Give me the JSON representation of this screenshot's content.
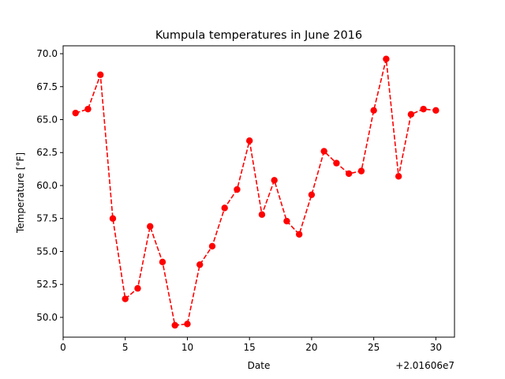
{
  "chart_data": {
    "type": "line",
    "title": "Kumpula temperatures in June 2016",
    "xlabel": "Date",
    "ylabel": "Temperature [°F]",
    "x_offset_label": "+2.01606e7",
    "xlim": [
      0,
      31.5
    ],
    "ylim": [
      48.5,
      70.6
    ],
    "x_ticks": [
      0,
      5,
      10,
      15,
      20,
      25,
      30
    ],
    "x_tick_labels": [
      "0",
      "5",
      "10",
      "15",
      "20",
      "25",
      "30"
    ],
    "y_ticks": [
      50.0,
      52.5,
      55.0,
      57.5,
      60.0,
      62.5,
      65.0,
      67.5,
      70.0
    ],
    "y_tick_labels": [
      "50.0",
      "52.5",
      "55.0",
      "57.5",
      "60.0",
      "62.5",
      "65.0",
      "67.5",
      "70.0"
    ],
    "grid": false,
    "legend": "none",
    "series": [
      {
        "color": "#ff0000",
        "line_style": "dashed",
        "marker": "circle",
        "x": [
          1,
          2,
          3,
          4,
          5,
          6,
          7,
          8,
          9,
          10,
          11,
          12,
          13,
          14,
          15,
          16,
          17,
          18,
          19,
          20,
          21,
          22,
          23,
          24,
          25,
          26,
          27,
          28,
          29,
          30
        ],
        "values": [
          65.5,
          65.8,
          68.4,
          57.5,
          51.4,
          52.2,
          56.9,
          54.2,
          49.4,
          49.5,
          54.0,
          55.4,
          58.3,
          59.7,
          63.4,
          57.8,
          60.4,
          57.3,
          56.3,
          59.3,
          62.6,
          61.7,
          60.9,
          61.1,
          65.7,
          69.6,
          60.7,
          65.4,
          65.8,
          65.7
        ]
      }
    ]
  }
}
